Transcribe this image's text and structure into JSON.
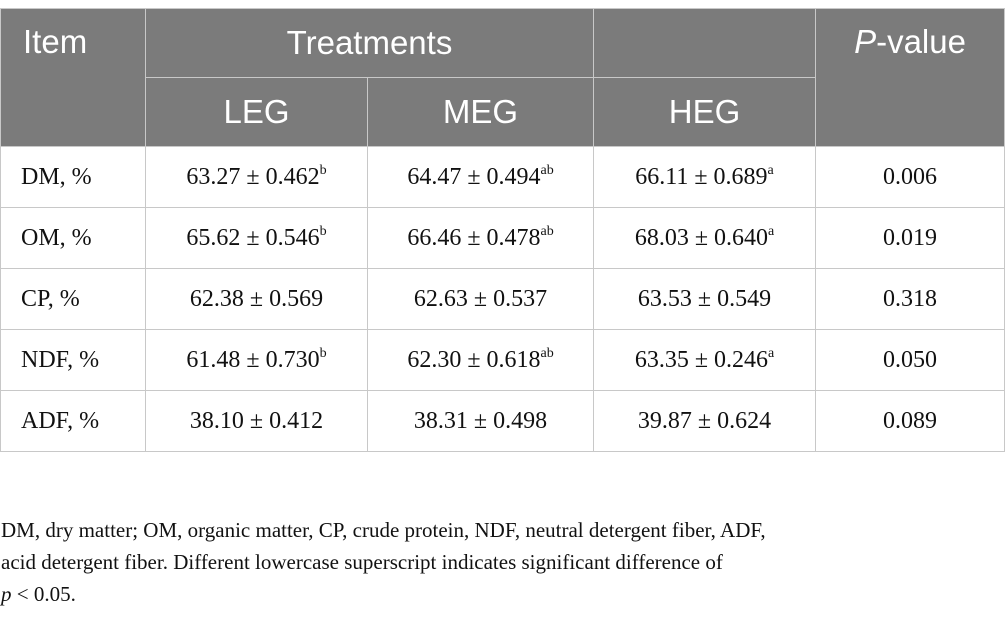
{
  "table": {
    "header": {
      "item": "Item",
      "treatments": "Treatments",
      "pvalue_italic": "P",
      "pvalue_rest": "-value",
      "groups": [
        "LEG",
        "MEG",
        "HEG"
      ]
    },
    "rows": [
      {
        "label": "DM, %",
        "leg": {
          "value": "63.27 ± 0.462",
          "sup": "b"
        },
        "meg": {
          "value": "64.47 ± 0.494",
          "sup": "ab"
        },
        "heg": {
          "value": "66.11 ± 0.689",
          "sup": "a"
        },
        "p": "0.006"
      },
      {
        "label": "OM, %",
        "leg": {
          "value": "65.62 ± 0.546",
          "sup": "b"
        },
        "meg": {
          "value": "66.46 ± 0.478",
          "sup": "ab"
        },
        "heg": {
          "value": "68.03 ± 0.640",
          "sup": "a"
        },
        "p": "0.019"
      },
      {
        "label": "CP, %",
        "leg": {
          "value": "62.38 ± 0.569",
          "sup": ""
        },
        "meg": {
          "value": "62.63 ± 0.537",
          "sup": ""
        },
        "heg": {
          "value": "63.53 ± 0.549",
          "sup": ""
        },
        "p": "0.318"
      },
      {
        "label": "NDF, %",
        "leg": {
          "value": "61.48 ± 0.730",
          "sup": "b"
        },
        "meg": {
          "value": "62.30 ± 0.618",
          "sup": "ab"
        },
        "heg": {
          "value": "63.35 ± 0.246",
          "sup": "a"
        },
        "p": "0.050"
      },
      {
        "label": "ADF, %",
        "leg": {
          "value": "38.10 ± 0.412",
          "sup": ""
        },
        "meg": {
          "value": "38.31 ± 0.498",
          "sup": ""
        },
        "heg": {
          "value": "39.87 ± 0.624",
          "sup": ""
        },
        "p": "0.089"
      }
    ]
  },
  "footnote": {
    "line1": "DM, dry matter; OM, organic matter, CP, crude protein, NDF, neutral detergent fiber, ADF,",
    "line2": "acid detergent fiber. Different lowercase superscript indicates significant difference of",
    "line3_italic": "p",
    "line3_rest": " < 0.05."
  }
}
